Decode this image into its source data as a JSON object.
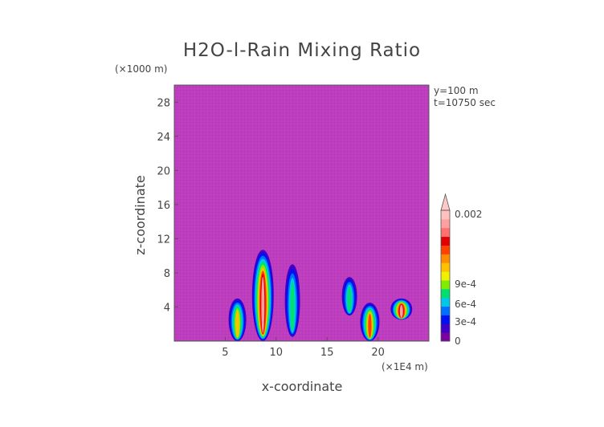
{
  "chart_data": {
    "type": "heatmap",
    "title": "H2O-l-Rain Mixing Ratio",
    "xlabel": "x-coordinate",
    "ylabel": "z-coordinate",
    "x_unit": "(×1E4 m)",
    "y_unit": "(×1000 m)",
    "annotations": [
      "y=100 m",
      "t=10750 sec"
    ],
    "xlim": [
      0,
      25
    ],
    "ylim": [
      0,
      30
    ],
    "x_ticks": [
      5,
      10,
      15,
      20
    ],
    "y_ticks": [
      4,
      8,
      12,
      16,
      20,
      24,
      28
    ],
    "colorbar": {
      "tick_labels": [
        "0",
        "3e-4",
        "6e-4",
        "9e-4",
        "0.002"
      ],
      "colors": [
        "#7a00a0",
        "#4000c8",
        "#0010f0",
        "#0070ff",
        "#00c8e6",
        "#00e070",
        "#80ec00",
        "#f0f000",
        "#ffc000",
        "#ff8c00",
        "#ff4000",
        "#e00000",
        "#ff7070",
        "#ffa0a0",
        "#ffc0c0"
      ],
      "extend_top_color": "#ffc8c8"
    },
    "background_color": "#c040c0",
    "features": [
      {
        "x": 6.2,
        "z_bottom": 0,
        "z_top": 5.0,
        "peak": "6e-4"
      },
      {
        "x": 8.7,
        "z_bottom": 0,
        "z_top": 10.7,
        "peak": "0.002"
      },
      {
        "x": 11.6,
        "z_bottom": 0.5,
        "z_top": 9.0,
        "peak": "3e-4"
      },
      {
        "x": 17.2,
        "z_bottom": 3.0,
        "z_top": 7.5,
        "peak": "3e-4"
      },
      {
        "x": 19.2,
        "z_bottom": 0,
        "z_top": 4.5,
        "peak": "9e-4"
      },
      {
        "x": 22.3,
        "z_bottom": 2.5,
        "z_top": 5.0,
        "peak": "0.002"
      }
    ]
  }
}
